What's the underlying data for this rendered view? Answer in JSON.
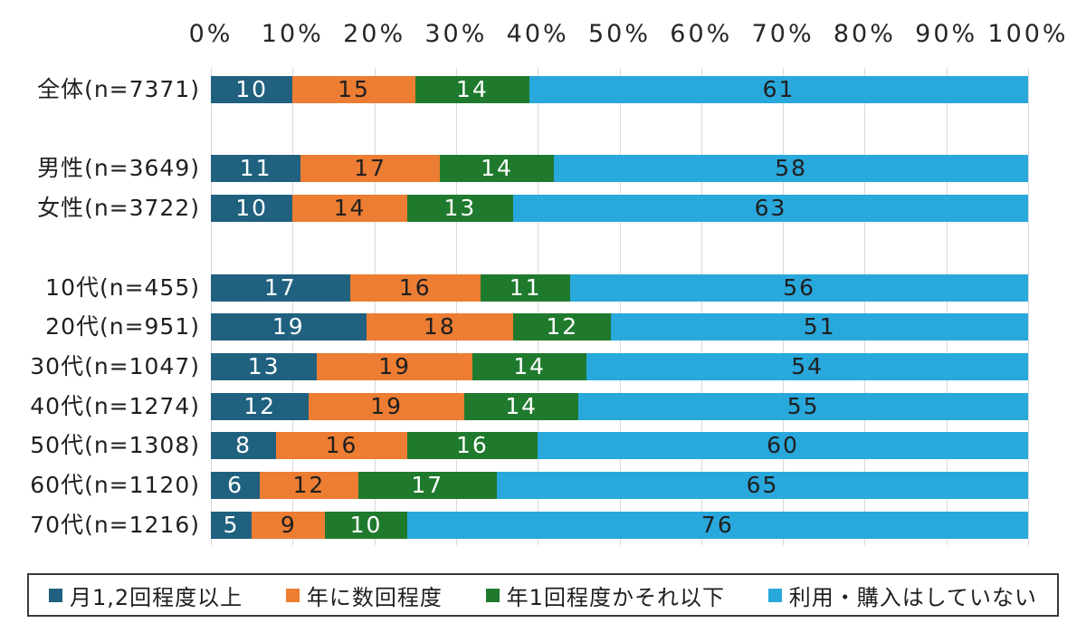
{
  "chart_data": {
    "type": "bar",
    "variant": "horizontal-stacked-100",
    "title": "",
    "xlabel": "",
    "ylabel": "",
    "xlim": [
      0,
      100
    ],
    "grid": true,
    "legend_position": "bottom",
    "x_ticks": [
      "0%",
      "10%",
      "20%",
      "30%",
      "40%",
      "50%",
      "60%",
      "70%",
      "80%",
      "90%",
      "100%"
    ],
    "categories": [
      "全体(n=7371)",
      "男性(n=3649)",
      "女性(n=3722)",
      "10代(n=455)",
      "20代(n=951)",
      "30代(n=1047)",
      "40代(n=1274)",
      "50代(n=1308)",
      "60代(n=1120)",
      "70代(n=1216)"
    ],
    "group_breaks_after": [
      0,
      2
    ],
    "series": [
      {
        "name": "月1,2回程度以上",
        "color": "#20617f",
        "label_color": "#ffffff",
        "values": [
          10,
          11,
          10,
          17,
          19,
          13,
          12,
          8,
          6,
          5
        ]
      },
      {
        "name": "年に数回程度",
        "color": "#ec7d33",
        "label_color": "#1f1f1f",
        "values": [
          15,
          17,
          14,
          16,
          18,
          19,
          19,
          16,
          12,
          9
        ]
      },
      {
        "name": "年1回程度かそれ以下",
        "color": "#1f7a2d",
        "label_color": "#ffffff",
        "values": [
          14,
          14,
          13,
          11,
          12,
          14,
          14,
          16,
          17,
          10
        ]
      },
      {
        "name": "利用・購入はしていない",
        "color": "#29a8dc",
        "label_color": "#1f1f1f",
        "values": [
          61,
          58,
          63,
          56,
          51,
          54,
          55,
          60,
          65,
          76
        ]
      }
    ],
    "colors": {
      "gridline": "#d9d9d9",
      "tick_text": "#262626",
      "category_text": "#1f1f1f",
      "legend_border": "#3a3a3a"
    }
  }
}
